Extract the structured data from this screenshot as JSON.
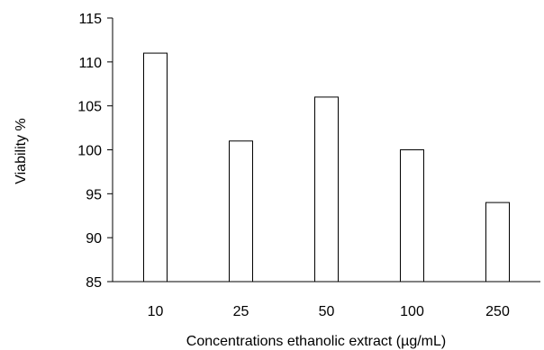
{
  "chart_data": {
    "type": "bar",
    "title": "",
    "xlabel": "Concentrations  ethanolic extract (µg/mL)",
    "ylabel": "Viability %",
    "categories": [
      "10",
      "25",
      "50",
      "100",
      "250"
    ],
    "values": [
      111,
      101,
      106,
      100,
      94
    ],
    "ylim": [
      85,
      115
    ],
    "yticks": [
      "85",
      "90",
      "95",
      "100",
      "105",
      "110",
      "115"
    ],
    "grid": false,
    "legend": "none",
    "bar_fill": "#ffffff",
    "bar_stroke": "#000000"
  }
}
